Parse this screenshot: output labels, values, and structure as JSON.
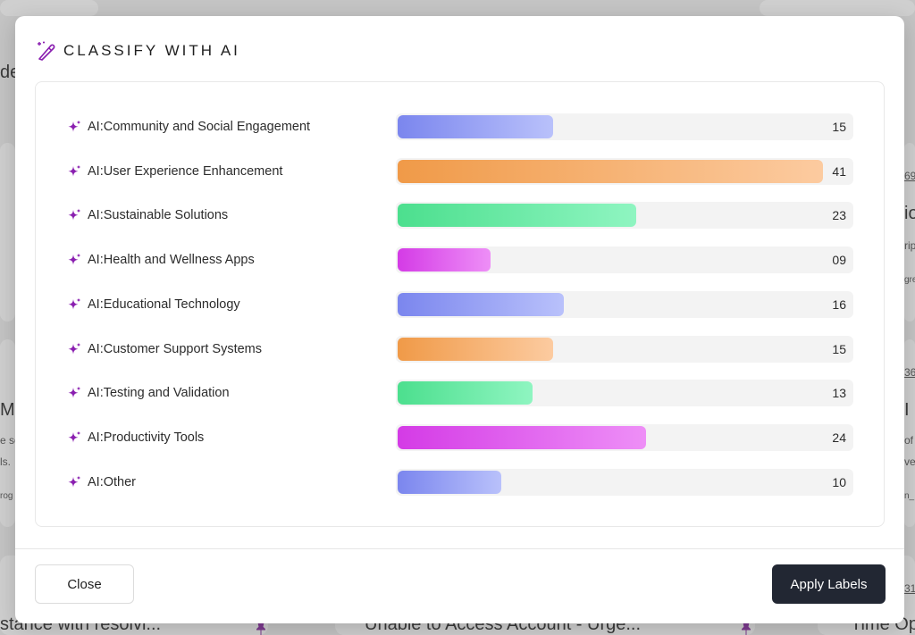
{
  "background": {
    "snippets": [
      "de",
      "Ma",
      "e so",
      "ls.",
      "rog",
      "io",
      "rip",
      "gre",
      "69",
      "36",
      "I S",
      "of",
      "ve",
      "n_",
      "31",
      "stance with resolvi...",
      "Unable to Access Account - Urge...",
      "Time Op"
    ]
  },
  "modal": {
    "title": "CLASSIFY WITH AI",
    "title_icon": "magic-wand-icon",
    "categories": [
      {
        "label": "AI:Community and Social Engagement",
        "count": "15",
        "value": 15,
        "color_from": "#7b86ee",
        "color_to": "#b9c1fb",
        "icon": "sparkle-icon"
      },
      {
        "label": "AI:User Experience Enhancement",
        "count": "41",
        "value": 41,
        "color_from": "#f09a48",
        "color_to": "#fccba0",
        "icon": "sparkle-icon"
      },
      {
        "label": "AI:Sustainable Solutions",
        "count": "23",
        "value": 23,
        "color_from": "#4cdf8e",
        "color_to": "#8ff5c1",
        "icon": "sparkle-icon"
      },
      {
        "label": "AI:Health and Wellness Apps",
        "count": "09",
        "value": 9,
        "color_from": "#d43be6",
        "color_to": "#ee8ff7",
        "icon": "sparkle-icon"
      },
      {
        "label": "AI:Educational Technology",
        "count": "16",
        "value": 16,
        "color_from": "#7b86ee",
        "color_to": "#b9c1fb",
        "icon": "sparkle-icon"
      },
      {
        "label": "AI:Customer Support Systems",
        "count": "15",
        "value": 15,
        "color_from": "#f09a48",
        "color_to": "#fccba0",
        "icon": "sparkle-icon"
      },
      {
        "label": "AI:Testing and Validation",
        "count": "13",
        "value": 13,
        "color_from": "#4cdf8e",
        "color_to": "#8ff5c1",
        "icon": "sparkle-icon"
      },
      {
        "label": "AI:Productivity Tools",
        "count": "24",
        "value": 24,
        "color_from": "#d43be6",
        "color_to": "#ee8ff7",
        "icon": "sparkle-icon"
      },
      {
        "label": "AI:Other",
        "count": "10",
        "value": 10,
        "color_from": "#7b86ee",
        "color_to": "#b9c1fb",
        "icon": "sparkle-icon"
      }
    ],
    "close_label": "Close",
    "apply_label": "Apply Labels"
  },
  "colors": {
    "accent_purple": "#8a1fb0",
    "apply_button": "#222733"
  }
}
